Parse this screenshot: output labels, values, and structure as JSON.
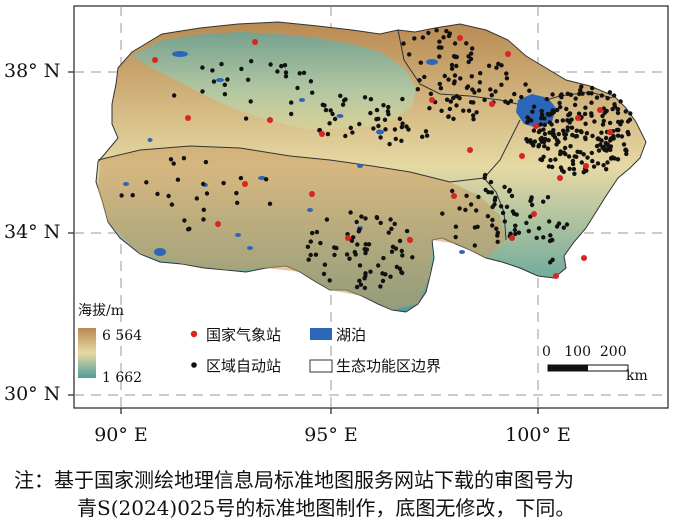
{
  "axes": {
    "lat_labels": [
      "38° N",
      "34° N",
      "30° N"
    ],
    "lon_labels": [
      "90° E",
      "95° E",
      "100° E"
    ]
  },
  "legend": {
    "elevation_title": "海拔/m",
    "elevation_max": "6 564",
    "elevation_min": "1 662",
    "national_station": "国家气象站",
    "regional_station": "区域自动站",
    "lake": "湖泊",
    "boundary": "生态功能区边界"
  },
  "scale_bar": {
    "numbers": "0   100  200",
    "unit": "km"
  },
  "caption": {
    "line1": "注：基于国家测绘地理信息局标准地图服务网站下载的审图号为",
    "line2": "青S(2024)025号的标准地图制作，底图无修改，下同。"
  },
  "colors": {
    "high_elev": "#b98a52",
    "low_elev": "#4f9e9a",
    "lake": "#2b66b9",
    "national_station": "#d92424",
    "regional_station": "#111111"
  }
}
